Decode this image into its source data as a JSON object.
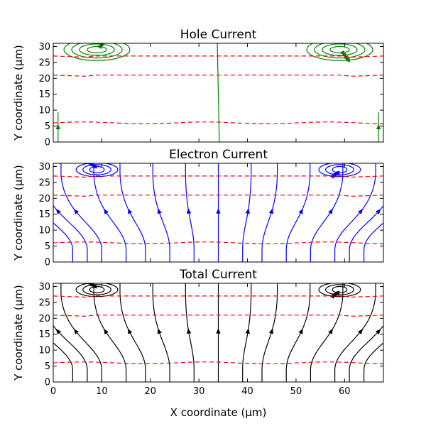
{
  "figure": {
    "xlabel": "X coordinate (µm)",
    "xlim": [
      0,
      68
    ],
    "xticks": [
      0,
      10,
      20,
      30,
      40,
      50,
      60
    ]
  },
  "chart_data": [
    {
      "type": "streamplot",
      "title": "Hole Current",
      "ylabel": "Y coordinate (µm)",
      "xlim": [
        0,
        68
      ],
      "ylim": [
        0,
        31
      ],
      "yticks": [
        0,
        5,
        10,
        15,
        20,
        25,
        30
      ],
      "line_color": "#008000",
      "boundary_color": "#ff0000",
      "boundaries_y": [
        6,
        21,
        27
      ],
      "boundary_style": "dashed",
      "pattern": "hole",
      "show_xtick_labels": false
    },
    {
      "type": "streamplot",
      "title": "Electron Current",
      "ylabel": "Y coordinate (µm)",
      "xlim": [
        0,
        68
      ],
      "ylim": [
        0,
        31
      ],
      "yticks": [
        0,
        5,
        10,
        15,
        20,
        25,
        30
      ],
      "line_color": "#0000ff",
      "boundary_color": "#ff0000",
      "boundaries_y": [
        6,
        21,
        27
      ],
      "boundary_style": "dashed",
      "pattern": "electron",
      "show_xtick_labels": false
    },
    {
      "type": "streamplot",
      "title": "Total Current",
      "ylabel": "Y coordinate (µm)",
      "xlim": [
        0,
        68
      ],
      "ylim": [
        0,
        31
      ],
      "yticks": [
        0,
        5,
        10,
        15,
        20,
        25,
        30
      ],
      "line_color": "#000000",
      "boundary_color": "#ff0000",
      "boundaries_y": [
        6,
        21,
        27
      ],
      "boundary_style": "dashed",
      "pattern": "total",
      "show_xtick_labels": true
    }
  ]
}
